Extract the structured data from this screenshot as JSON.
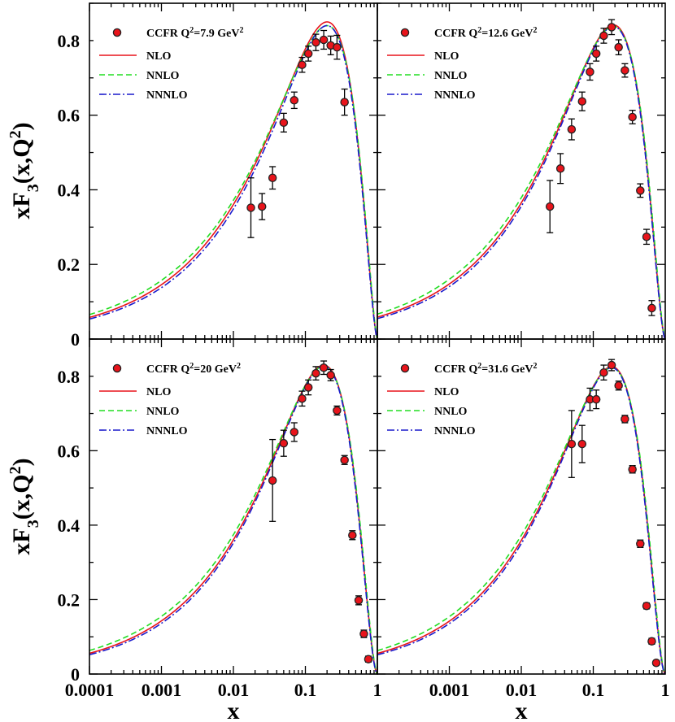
{
  "chart_data": [
    {
      "type": "line",
      "title": "",
      "xlabel": "x",
      "ylabel": "xF3(x,Q2)",
      "xscale": "log",
      "xlim": [
        0.0001,
        1
      ],
      "ylim": [
        0,
        0.9
      ],
      "legend_position": "top-left",
      "legend": {
        "data_label": {
          "main": "CCFR Q",
          "sup": "2",
          "mid": "=7.9 GeV",
          "sup2": "2"
        },
        "nlo": "NLO",
        "nnlo": "NNLO",
        "nnnlo": "NNNLO"
      },
      "data": {
        "x": [
          0.0175,
          0.025,
          0.035,
          0.05,
          0.07,
          0.09,
          0.11,
          0.14,
          0.18,
          0.225,
          0.275,
          0.35
        ],
        "y": [
          0.352,
          0.355,
          0.432,
          0.58,
          0.64,
          0.735,
          0.765,
          0.795,
          0.802,
          0.787,
          0.782,
          0.635
        ],
        "err": [
          0.08,
          0.035,
          0.03,
          0.025,
          0.022,
          0.02,
          0.02,
          0.022,
          0.025,
          0.025,
          0.032,
          0.035
        ]
      },
      "series": [
        {
          "name": "NLO",
          "peak": 0.85,
          "peak_x": 0.2,
          "a": 0.4
        },
        {
          "name": "NNLO",
          "peak": 0.84,
          "peak_x": 0.2,
          "a": 0.38
        },
        {
          "name": "NNNLO",
          "peak": 0.84,
          "peak_x": 0.2,
          "a": 0.41
        }
      ]
    },
    {
      "type": "line",
      "title": "",
      "xlabel": "x",
      "ylabel": "",
      "xscale": "log",
      "xlim": [
        0.0001,
        1
      ],
      "ylim": [
        0,
        0.9
      ],
      "legend_position": "top-left",
      "legend": {
        "data_label": {
          "main": "CCFR Q",
          "sup": "2",
          "mid": "=12.6 GeV",
          "sup2": "2"
        },
        "nlo": "NLO",
        "nnlo": "NNLO",
        "nnnlo": "NNNLO"
      },
      "data": {
        "x": [
          0.025,
          0.035,
          0.05,
          0.07,
          0.09,
          0.11,
          0.14,
          0.18,
          0.225,
          0.275,
          0.35,
          0.45,
          0.55,
          0.65
        ],
        "y": [
          0.355,
          0.457,
          0.562,
          0.637,
          0.716,
          0.765,
          0.813,
          0.836,
          0.782,
          0.72,
          0.595,
          0.398,
          0.274,
          0.083
        ],
        "err": [
          0.07,
          0.04,
          0.028,
          0.025,
          0.022,
          0.02,
          0.02,
          0.02,
          0.02,
          0.018,
          0.018,
          0.018,
          0.02,
          0.02
        ]
      },
      "series": [
        {
          "name": "NLO",
          "peak": 0.842,
          "peak_x": 0.19,
          "a": 0.4
        },
        {
          "name": "NNLO",
          "peak": 0.838,
          "peak_x": 0.19,
          "a": 0.38
        },
        {
          "name": "NNNLO",
          "peak": 0.838,
          "peak_x": 0.19,
          "a": 0.41
        }
      ]
    },
    {
      "type": "line",
      "title": "",
      "xlabel": "x",
      "ylabel": "xF3(x,Q2)",
      "xscale": "log",
      "xlim": [
        0.0001,
        1
      ],
      "ylim": [
        0,
        0.9
      ],
      "legend_position": "top-left",
      "legend": {
        "data_label": {
          "main": "CCFR Q",
          "sup": "2",
          "mid": "=20 GeV",
          "sup2": "2"
        },
        "nlo": "NLO",
        "nnlo": "NNLO",
        "nnnlo": "NNNLO"
      },
      "data": {
        "x": [
          0.035,
          0.05,
          0.07,
          0.09,
          0.11,
          0.14,
          0.18,
          0.225,
          0.275,
          0.35,
          0.45,
          0.55,
          0.65,
          0.75
        ],
        "y": [
          0.52,
          0.62,
          0.65,
          0.74,
          0.77,
          0.808,
          0.823,
          0.803,
          0.708,
          0.575,
          0.373,
          0.198,
          0.108,
          0.04
        ],
        "err": [
          0.11,
          0.035,
          0.025,
          0.02,
          0.02,
          0.018,
          0.018,
          0.015,
          0.012,
          0.012,
          0.012,
          0.012,
          0.01,
          0.008
        ]
      },
      "series": [
        {
          "name": "NLO",
          "peak": 0.83,
          "peak_x": 0.18,
          "a": 0.41
        },
        {
          "name": "NNLO",
          "peak": 0.827,
          "peak_x": 0.18,
          "a": 0.39
        },
        {
          "name": "NNNLO",
          "peak": 0.827,
          "peak_x": 0.18,
          "a": 0.42
        }
      ]
    },
    {
      "type": "line",
      "title": "",
      "xlabel": "x",
      "ylabel": "",
      "xscale": "log",
      "xlim": [
        0.0001,
        1
      ],
      "ylim": [
        0,
        0.9
      ],
      "legend_position": "top-left",
      "legend": {
        "data_label": {
          "main": "CCFR Q",
          "sup": "2",
          "mid": "=31.6 GeV",
          "sup2": "2"
        },
        "nlo": "NLO",
        "nnlo": "NNLO",
        "nnnlo": "NNNLO"
      },
      "data": {
        "x": [
          0.05,
          0.07,
          0.09,
          0.11,
          0.14,
          0.18,
          0.225,
          0.275,
          0.35,
          0.45,
          0.55,
          0.65,
          0.75
        ],
        "y": [
          0.618,
          0.618,
          0.738,
          0.738,
          0.81,
          0.83,
          0.775,
          0.685,
          0.55,
          0.35,
          0.183,
          0.088,
          0.03
        ],
        "err": [
          0.09,
          0.05,
          0.03,
          0.025,
          0.02,
          0.015,
          0.012,
          0.01,
          0.01,
          0.01,
          0.008,
          0.008,
          0.006
        ]
      },
      "series": [
        {
          "name": "NLO",
          "peak": 0.826,
          "peak_x": 0.18,
          "a": 0.41
        },
        {
          "name": "NNLO",
          "peak": 0.823,
          "peak_x": 0.18,
          "a": 0.39
        },
        {
          "name": "NNNLO",
          "peak": 0.823,
          "peak_x": 0.18,
          "a": 0.42
        }
      ]
    }
  ],
  "axes": {
    "x_ticks": [
      {
        "value": 0.0001,
        "label": "0.0001"
      },
      {
        "value": 0.001,
        "label": "0.001"
      },
      {
        "value": 0.01,
        "label": "0.01"
      },
      {
        "value": 0.1,
        "label": "0.1"
      },
      {
        "value": 1,
        "label": "1"
      }
    ],
    "y_ticks": [
      {
        "value": 0,
        "label": "0"
      },
      {
        "value": 0.2,
        "label": "0.2"
      },
      {
        "value": 0.4,
        "label": "0.4"
      },
      {
        "value": 0.6,
        "label": "0.6"
      },
      {
        "value": 0.8,
        "label": "0.8"
      }
    ],
    "xlabel": "x",
    "ylabel": {
      "main": "xF",
      "sub": "3",
      "mid": "(x,Q",
      "sup": "2",
      "end": ")"
    }
  },
  "colors": {
    "nlo": "#e8141b",
    "nnlo": "#22dd22",
    "nnnlo": "#1a1acc",
    "marker_fill": "#e8141b",
    "marker_edge": "#222222"
  }
}
